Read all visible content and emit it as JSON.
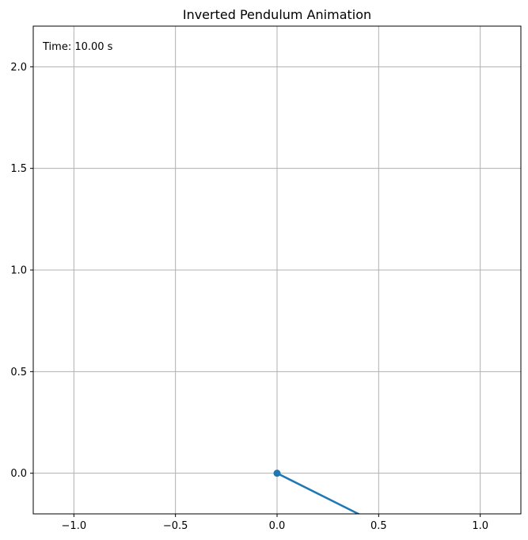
{
  "chart_data": {
    "type": "line",
    "title": "Inverted Pendulum Animation",
    "xlabel": "",
    "ylabel": "",
    "xlim": [
      -1.2,
      1.2
    ],
    "ylim": [
      -0.2,
      2.2
    ],
    "grid": true,
    "x_ticks": [
      -1.0,
      -0.5,
      0.0,
      0.5,
      1.0
    ],
    "x_tick_labels": [
      "−1.0",
      "−0.5",
      "0.0",
      "0.5",
      "1.0"
    ],
    "y_ticks": [
      0.0,
      0.5,
      1.0,
      1.5,
      2.0
    ],
    "y_tick_labels": [
      "0.0",
      "0.5",
      "1.0",
      "1.5",
      "2.0"
    ],
    "annotation": "Time: 10.00 s",
    "series": [
      {
        "color": "#1f77b4",
        "x": [
          0.0,
          0.8
        ],
        "y": [
          0.0,
          -0.4
        ],
        "marker_points": [
          [
            0.0,
            0.0
          ]
        ]
      }
    ]
  }
}
